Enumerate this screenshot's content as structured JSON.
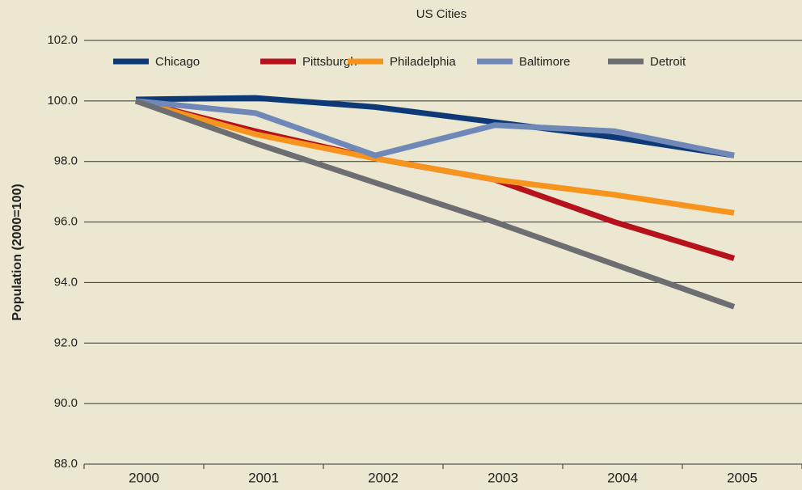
{
  "chart_data": {
    "type": "line",
    "title": "US Cities",
    "ylabel": "Population (2000=100)",
    "categories": [
      "2000",
      "2001",
      "2002",
      "2003",
      "2004",
      "2005"
    ],
    "series": [
      {
        "name": "Chicago",
        "color": "#0d3a77",
        "values": [
          100.05,
          100.1,
          99.8,
          99.3,
          98.8,
          98.2
        ]
      },
      {
        "name": "Pittsburgh",
        "color": "#b5121b",
        "values": [
          100.0,
          99.0,
          98.1,
          97.4,
          96.0,
          94.8
        ]
      },
      {
        "name": "Philadelphia",
        "color": "#f7941d",
        "values": [
          100.0,
          98.9,
          98.1,
          97.4,
          96.9,
          96.3
        ]
      },
      {
        "name": "Baltimore",
        "color": "#7088b8",
        "values": [
          100.0,
          99.6,
          98.2,
          99.2,
          99.0,
          98.2
        ]
      },
      {
        "name": "Detroit",
        "color": "#6d6e71",
        "values": [
          100.0,
          98.6,
          97.3,
          96.0,
          94.6,
          93.2
        ]
      }
    ],
    "ylim": [
      88,
      102
    ],
    "yticks": [
      {
        "value": 88,
        "label": "88.0"
      },
      {
        "value": 90,
        "label": "90.0"
      },
      {
        "value": 92,
        "label": "92.0"
      },
      {
        "value": 94,
        "label": "94.0"
      },
      {
        "value": 96,
        "label": "96.0"
      },
      {
        "value": 98,
        "label": "98.0"
      },
      {
        "value": 100,
        "label": "100.0"
      },
      {
        "value": 102,
        "label": "102.0"
      }
    ],
    "grid": true,
    "legend": "top"
  }
}
